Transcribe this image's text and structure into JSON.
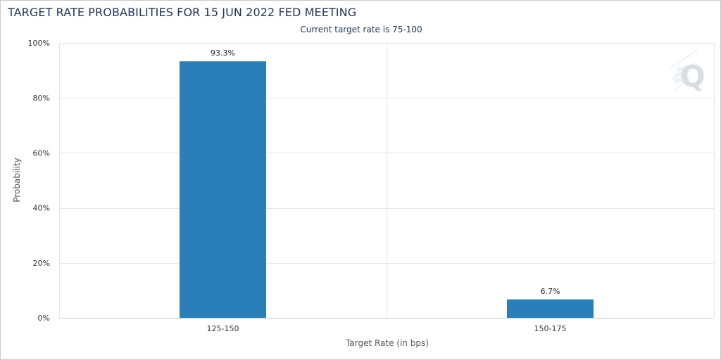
{
  "header": {
    "title": "TARGET RATE PROBABILITIES FOR 15 JUN 2022 FED MEETING",
    "subtitle": "Current target rate is 75-100"
  },
  "chart_data": {
    "type": "bar",
    "title": "TARGET RATE PROBABILITIES FOR 15 JUN 2022 FED MEETING",
    "subtitle": "Current target rate is 75-100",
    "categories": [
      "125-150",
      "150-175"
    ],
    "values": [
      93.3,
      6.7
    ],
    "data_labels": [
      "93.3%",
      "6.7%"
    ],
    "xlabel": "Target Rate (in bps)",
    "ylabel": "Probability",
    "ylim": [
      0,
      100
    ],
    "yticks": [
      0,
      20,
      40,
      60,
      80,
      100
    ],
    "ytick_labels": [
      "0%",
      "20%",
      "40%",
      "60%",
      "80%",
      "100%"
    ],
    "grid": true,
    "colors": {
      "bar": "#2a7fb8",
      "grid": "#e6e6e6",
      "axis": "#c8c8c8"
    },
    "watermark_icon": "q-logo-icon"
  }
}
